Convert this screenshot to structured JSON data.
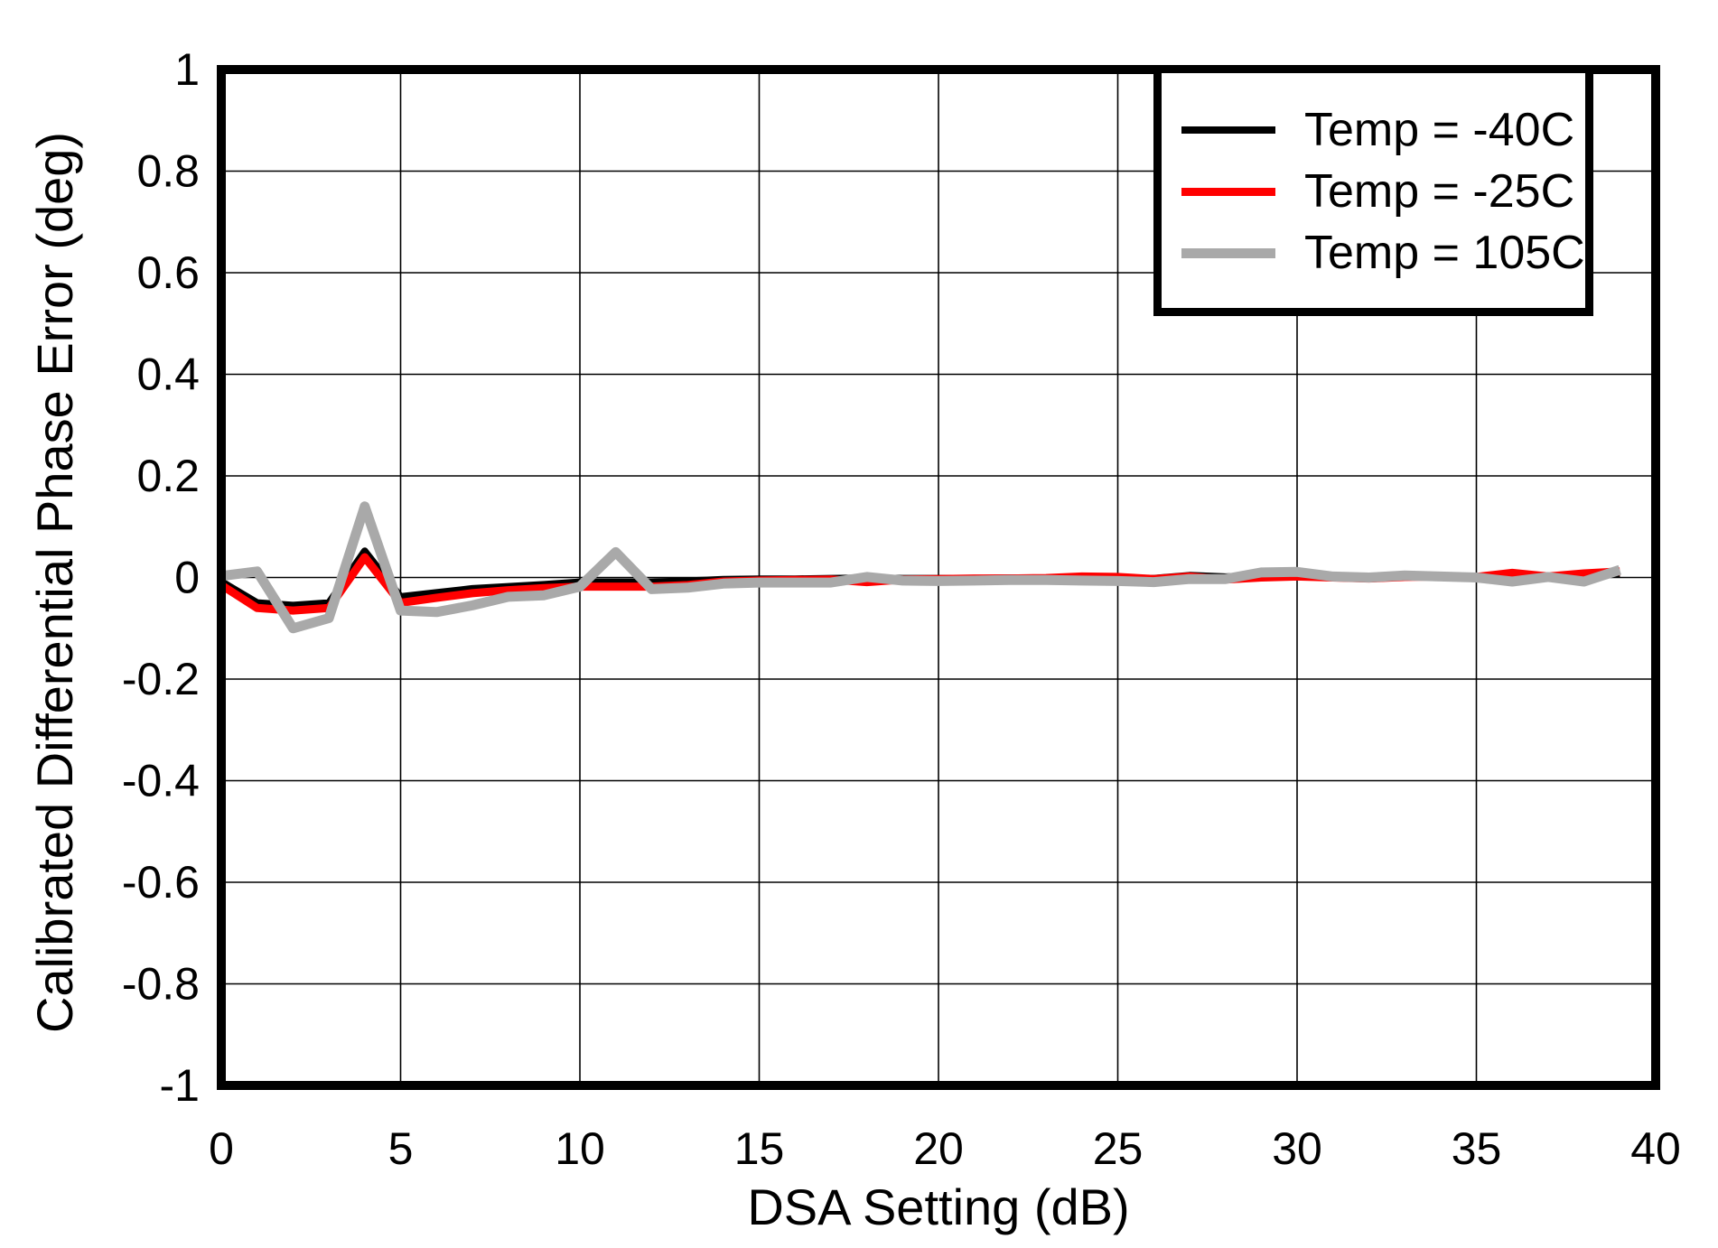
{
  "chart_data": {
    "type": "line",
    "title": "",
    "xlabel": "DSA Setting (dB)",
    "ylabel": "Calibrated Differential Phase Error (deg)",
    "xlim": [
      0,
      40
    ],
    "ylim": [
      -1,
      1
    ],
    "grid": true,
    "legend_position": "top-right",
    "x_ticks": [
      0,
      5,
      10,
      15,
      20,
      25,
      30,
      35,
      40
    ],
    "x_tick_labels": [
      "0",
      "5",
      "10",
      "15",
      "20",
      "25",
      "30",
      "35",
      "40"
    ],
    "y_ticks": [
      1,
      0.8,
      0.6,
      0.4,
      0.2,
      0,
      -0.2,
      -0.4,
      -0.6,
      -0.8,
      -1
    ],
    "y_tick_labels": [
      "1",
      "0.8",
      "0.6",
      "0.4",
      "0.2",
      "0",
      "-0.2",
      "-0.4",
      "-0.6",
      "-0.8",
      "-1"
    ],
    "x": [
      0,
      1,
      2,
      3,
      4,
      5,
      6,
      7,
      8,
      9,
      10,
      11,
      12,
      13,
      14,
      15,
      16,
      17,
      18,
      19,
      20,
      21,
      22,
      23,
      24,
      25,
      26,
      27,
      28,
      29,
      30,
      31,
      32,
      33,
      34,
      35,
      36,
      37,
      38,
      39
    ],
    "series": [
      {
        "name": "Temp = -40C",
        "color": "#000000",
        "line_width": 8,
        "values": [
          -0.008,
          -0.05,
          -0.055,
          -0.05,
          0.052,
          -0.038,
          -0.03,
          -0.022,
          -0.018,
          -0.014,
          -0.009,
          -0.009,
          -0.009,
          -0.007,
          -0.004,
          -0.003,
          -0.003,
          -0.002,
          -0.001,
          -0.002,
          -0.002,
          -0.002,
          -0.001,
          -0.001,
          0,
          -0.001,
          -0.002,
          0.004,
          0.001,
          0.003,
          0.004,
          0.002,
          0.001,
          0.002,
          0.001,
          0.001,
          0.002,
          0.001,
          0.004,
          0.008
        ]
      },
      {
        "name": "Temp = -25C",
        "color": "#FF0000",
        "line_width": 9,
        "values": [
          -0.015,
          -0.06,
          -0.065,
          -0.06,
          0.04,
          -0.05,
          -0.04,
          -0.031,
          -0.025,
          -0.021,
          -0.018,
          -0.018,
          -0.018,
          -0.015,
          -0.008,
          -0.006,
          -0.005,
          -0.004,
          -0.009,
          -0.004,
          -0.003,
          -0.002,
          -0.002,
          -0.001,
          0.002,
          0.001,
          -0.003,
          0.002,
          -0.004,
          0,
          0.002,
          0,
          -0.002,
          0.001,
          0.002,
          0.001,
          0.009,
          0.002,
          0.008,
          0.012
        ]
      },
      {
        "name": "Temp = 105C",
        "color": "#A9A9A9",
        "line_width": 11,
        "values": [
          0.003,
          0.012,
          -0.1,
          -0.08,
          0.14,
          -0.065,
          -0.068,
          -0.055,
          -0.038,
          -0.035,
          -0.018,
          0.05,
          -0.023,
          -0.02,
          -0.012,
          -0.01,
          -0.01,
          -0.01,
          0.001,
          -0.006,
          -0.007,
          -0.006,
          -0.005,
          -0.005,
          -0.006,
          -0.007,
          -0.009,
          -0.003,
          -0.003,
          0.01,
          0.011,
          0.002,
          0,
          0.004,
          0.002,
          0,
          -0.008,
          0.001,
          -0.008,
          0.015
        ]
      }
    ],
    "colors": {
      "background": "#FFFFFF",
      "frame": "#000000",
      "grid": "#000000",
      "text": "#000000"
    }
  }
}
